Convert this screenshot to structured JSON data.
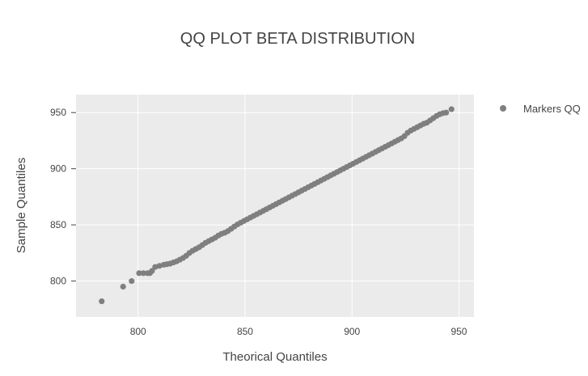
{
  "chart_data": {
    "type": "scatter",
    "title": "QQ PLOT BETA DISTRIBUTION",
    "xlabel": "Theorical Quantiles",
    "ylabel": "Sample Quantiles",
    "xlim": [
      771,
      957
    ],
    "ylim": [
      768,
      966
    ],
    "xticks": [
      800,
      850,
      900,
      950
    ],
    "yticks": [
      800,
      850,
      900,
      950
    ],
    "grid": true,
    "legend_position": "top-right",
    "plot_background": "#ebebeb",
    "marker_color": "#7f7f7f",
    "series": [
      {
        "name": "Markers QQ",
        "x": [
          783,
          793,
          797,
          800.5,
          802.5,
          804.5,
          805.5,
          806.5,
          808,
          810,
          812,
          813.5,
          815,
          816.5,
          818,
          819.5,
          821,
          822.5,
          824,
          825.5,
          827,
          828.5,
          830,
          831.5,
          833,
          834.5,
          836,
          837.5,
          839,
          840.5,
          842,
          843.5,
          845,
          846.5,
          848,
          849.5,
          851,
          852.5,
          854,
          855.5,
          857,
          858.5,
          860,
          861.5,
          863,
          864.5,
          866,
          867.5,
          869,
          870.5,
          872,
          873.5,
          875,
          876.5,
          878,
          879.5,
          881,
          882.5,
          884,
          885.5,
          887,
          888.5,
          890,
          891.5,
          893,
          894.5,
          896,
          897.5,
          899,
          900.5,
          902,
          903.5,
          905,
          906.5,
          908,
          909.5,
          911,
          912.5,
          914,
          915.5,
          917,
          918.5,
          920,
          921.5,
          923,
          924.5,
          926,
          927.5,
          929,
          930.5,
          932,
          933.5,
          935,
          936.5,
          938,
          939.5,
          941,
          942.5,
          944,
          946.5
        ],
        "y": [
          782,
          795,
          800,
          807,
          807,
          807,
          807,
          809,
          812.5,
          813.5,
          814.5,
          815,
          815.5,
          816.5,
          817.5,
          819,
          820.5,
          822.5,
          825,
          827,
          828.5,
          830,
          832,
          834,
          835.5,
          837,
          838.5,
          840.5,
          842,
          843,
          844.5,
          846.5,
          848.5,
          850.5,
          852,
          853.5,
          855,
          856.5,
          858,
          859.5,
          861,
          862.5,
          864,
          865.5,
          867,
          868.5,
          870,
          871.5,
          873,
          874.5,
          876,
          877.5,
          879,
          880.5,
          882,
          883.5,
          885,
          886.5,
          888,
          889.5,
          891,
          892.5,
          894,
          895.5,
          897,
          898.5,
          900,
          901.5,
          903,
          904.5,
          906,
          907.5,
          909,
          910.5,
          912,
          913.5,
          915,
          916.5,
          918,
          919.5,
          921,
          922.5,
          924,
          925.5,
          927,
          929,
          932,
          934,
          935.5,
          937,
          938.5,
          940,
          941,
          943,
          945,
          947,
          948.5,
          949.5,
          950,
          953
        ]
      }
    ]
  }
}
